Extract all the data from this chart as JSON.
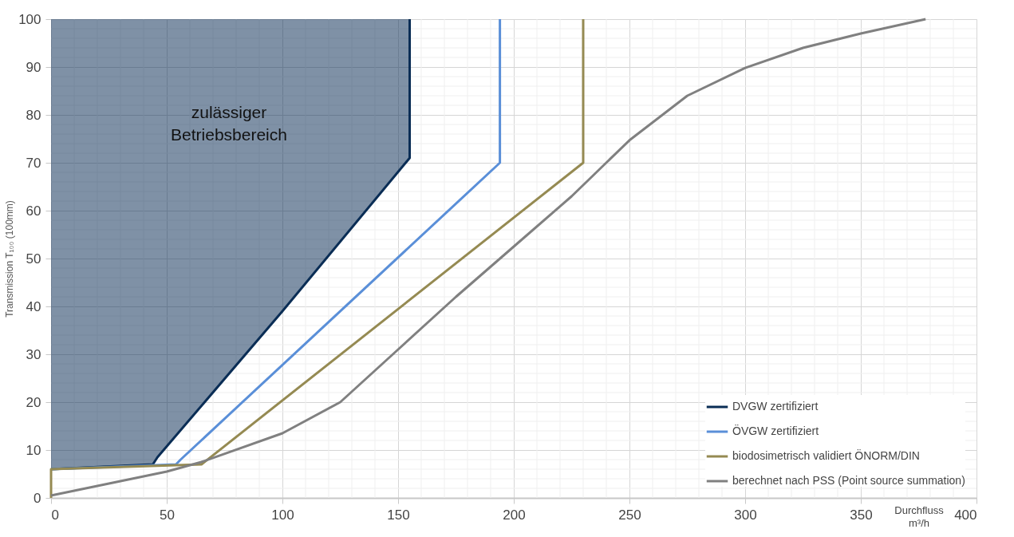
{
  "chart_data": {
    "type": "line",
    "xlabel": "Durchfluss m³/h",
    "ylabel": "Transmission T₁₀₀ (100mm)",
    "xlim": [
      0,
      400
    ],
    "ylim": [
      0,
      100
    ],
    "xticks": [
      0,
      50,
      100,
      150,
      200,
      250,
      300,
      350,
      400
    ],
    "yticks": [
      0,
      10,
      20,
      30,
      40,
      50,
      60,
      70,
      80,
      90,
      100
    ],
    "grid": true,
    "legend": "bottom right",
    "line_style": "solid",
    "annotations": [
      "zulässiger Betriebsbereich"
    ],
    "series": [
      {
        "name": "DVGW zertifiziert",
        "color": "#0a2d55",
        "x": [
          0,
          44,
          46,
          100,
          155,
          155
        ],
        "values": [
          6,
          7,
          8.5,
          39,
          71,
          100
        ],
        "lower": [
          6,
          7,
          8.5,
          39,
          71,
          100
        ],
        "upper": [
          100,
          100,
          100,
          100,
          100,
          100
        ]
      },
      {
        "name": "ÖVGW zertifiziert",
        "color": "#5a8fd8",
        "x": [
          0,
          54,
          56,
          194,
          194
        ],
        "values": [
          6,
          7,
          8,
          70,
          100
        ]
      },
      {
        "name": "biodosimetrisch validiert ÖNORM/DIN",
        "color": "#958a52",
        "x": [
          0,
          0,
          65,
          230,
          230
        ],
        "values": [
          0,
          6,
          7,
          70,
          100
        ]
      },
      {
        "name": "berechnet nach PSS (Point source summation)",
        "color": "#808080",
        "x": [
          0,
          25,
          50,
          65,
          100,
          125,
          150,
          175,
          200,
          225,
          250,
          275,
          300,
          325,
          350,
          378
        ],
        "values": [
          0.5,
          3,
          5.5,
          7.5,
          13.5,
          20,
          31,
          42,
          52.5,
          63,
          74.7,
          84,
          89.8,
          94,
          97,
          100
        ]
      }
    ]
  }
}
